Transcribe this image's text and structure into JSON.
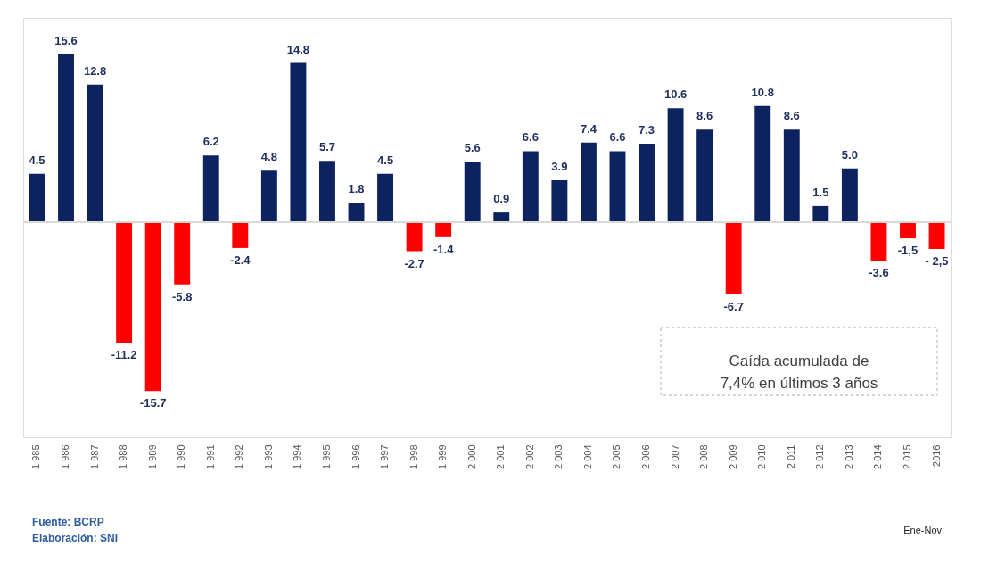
{
  "chart_data": {
    "type": "bar",
    "categories": [
      "1 985",
      "1 986",
      "1 987",
      "1 988",
      "1 989",
      "1 990",
      "1 991",
      "1 992",
      "1 993",
      "1 994",
      "1 995",
      "1 996",
      "1 997",
      "1 998",
      "1 999",
      "2 000",
      "2 001",
      "2 002",
      "2 003",
      "2 004",
      "2 005",
      "2 006",
      "2 007",
      "2 008",
      "2 009",
      "2 010",
      "2 011",
      "2 012",
      "2 013",
      "2 014",
      "2 015",
      "2016"
    ],
    "values": [
      4.5,
      15.6,
      12.8,
      -11.2,
      -15.7,
      -5.8,
      6.2,
      -2.4,
      4.8,
      14.8,
      5.7,
      1.8,
      4.5,
      -2.7,
      -1.4,
      5.6,
      0.9,
      6.6,
      3.9,
      7.4,
      6.6,
      7.3,
      10.6,
      8.6,
      -6.7,
      10.8,
      8.6,
      1.5,
      5.0,
      -3.6,
      -1.5,
      -2.5
    ],
    "value_labels": [
      "4.5",
      "15.6",
      "12.8",
      "-11.2",
      "-15.7",
      "-5.8",
      "6.2",
      "-2.4",
      "4.8",
      "14.8",
      "5.7",
      "1.8",
      "4.5",
      "-2.7",
      "-1.4",
      "5.6",
      "0.9",
      "6.6",
      "3.9",
      "7.4",
      "6.6",
      "7.3",
      "10.6",
      "8.6",
      "-6.7",
      "10.8",
      "8.6",
      "1.5",
      "5.0",
      "-3.6",
      "-1,5",
      "- 2,5"
    ],
    "colors": [
      "#0d2360",
      "#0d2360",
      "#0d2360",
      "#ff0000",
      "#ff0000",
      "#ff0000",
      "#0d2360",
      "#ff0000",
      "#0d2360",
      "#0d2360",
      "#0d2360",
      "#0d2360",
      "#0d2360",
      "#ff0000",
      "#ff0000",
      "#0d2360",
      "#0d2360",
      "#0d2360",
      "#0d2360",
      "#0d2360",
      "#0d2360",
      "#0d2360",
      "#0d2360",
      "#0d2360",
      "#ff0000",
      "#0d2360",
      "#0d2360",
      "#0d2360",
      "#0d2360",
      "#ff0000",
      "#ff0000",
      "#ff0000"
    ],
    "ylim": [
      -20,
      19
    ],
    "grid": false,
    "tick_labels": "x",
    "annotations": [
      "Caída acumulada de\n7,4% en últimos 3 años",
      "Fuente: BCRP",
      "Elaboración: SNI",
      "Ene-Nov"
    ]
  }
}
